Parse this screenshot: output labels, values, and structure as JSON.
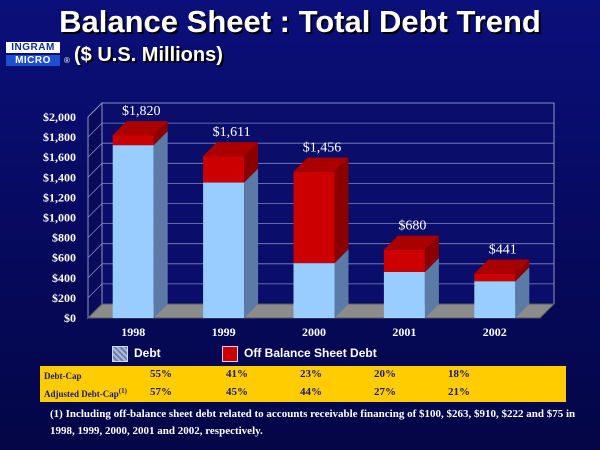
{
  "header": {
    "title": "Balance Sheet : Total Debt Trend",
    "subtitle": "($ U.S. Millions)"
  },
  "logo": {
    "line1": "INGRAM",
    "line2": "MICRO",
    "mark": "®"
  },
  "colors": {
    "debt_front": "#99ccff",
    "debt_side": "#5b7aa6",
    "off_front": "#cc0000",
    "off_side": "#8a0000",
    "off_top": "#aa0000",
    "floor": "#8c8c8c",
    "wall": "#0a0e6a",
    "table_bg": "#ffcc00"
  },
  "chart_data": {
    "type": "bar",
    "stacked": true,
    "three_d": true,
    "categories": [
      "1998",
      "1999",
      "2000",
      "2001",
      "2002"
    ],
    "series": [
      {
        "name": "Debt",
        "values": [
          1720,
          1348,
          546,
          458,
          366
        ]
      },
      {
        "name": "Off Balance Sheet Debt",
        "values": [
          100,
          263,
          910,
          222,
          75
        ]
      }
    ],
    "totals_labels": [
      "$1,820",
      "$1,611",
      "$1,456",
      "$680",
      "$441"
    ],
    "totals": [
      1820,
      1611,
      1456,
      680,
      441
    ],
    "ylim": [
      0,
      2000
    ],
    "yticks": [
      0,
      200,
      400,
      600,
      800,
      1000,
      1200,
      1400,
      1600,
      1800,
      2000
    ],
    "ytick_labels": [
      "$0",
      "$200",
      "$400",
      "$600",
      "$800",
      "$1,000",
      "$1,200",
      "$1,400",
      "$1,600",
      "$1,800",
      "$2,000"
    ],
    "grid": true,
    "legend_position": "bottom"
  },
  "ratios": {
    "rows": [
      {
        "label": "Debt-Cap",
        "superscript": "",
        "values": [
          "55%",
          "41%",
          "23%",
          "20%",
          "18%"
        ]
      },
      {
        "label": "Adjusted Debt-Cap",
        "superscript": "(1)",
        "values": [
          "57%",
          "45%",
          "44%",
          "27%",
          "21%"
        ]
      }
    ]
  },
  "footnote": "(1) Including off-balance sheet debt related to accounts receivable financing of $100, $263, $910, $222 and $75 in 1998, 1999, 2000, 2001 and 2002, respectively."
}
